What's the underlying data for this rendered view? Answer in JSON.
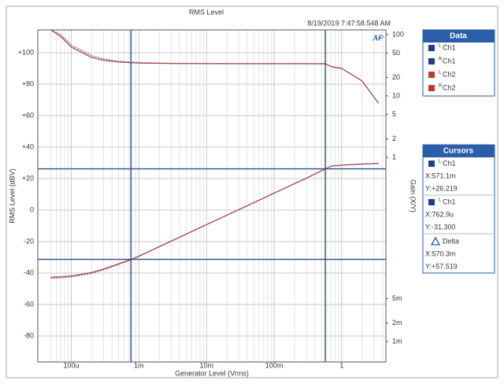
{
  "chart_data": {
    "type": "line",
    "title": "RMS Level",
    "timestamp": "8/19/2019 7:47:58.548 AM",
    "logo": "AP",
    "xlabel": "Generator Level (Vrms)",
    "ylabel": "RMS Level (dBV)",
    "y2label": "Gain (X/Y)",
    "xscale": "log",
    "y2scale": "log",
    "grid": true,
    "xlim": [
      3.2e-05,
      4.5
    ],
    "ylim": [
      -96.5,
      114.5
    ],
    "y2lim": [
      0.000464,
      119
    ],
    "xticks": [
      {
        "value": 0.0001,
        "label": "100u"
      },
      {
        "value": 0.001,
        "label": "1m"
      },
      {
        "value": 0.01,
        "label": "10m"
      },
      {
        "value": 0.1,
        "label": "100m"
      },
      1
    ],
    "xminorticks": [
      5e-05,
      6e-05,
      7e-05,
      8e-05,
      9e-05,
      0.0002,
      0.0003,
      0.0004,
      0.0005,
      0.0006,
      0.0007,
      0.0008,
      0.0009,
      0.002,
      0.003,
      0.004,
      0.005,
      0.006,
      0.007,
      0.008,
      0.009,
      0.02,
      0.03,
      0.04,
      0.05,
      0.06,
      0.07,
      0.08,
      0.09,
      0.2,
      0.3,
      0.4,
      0.5,
      0.6,
      0.7,
      0.8,
      0.9,
      2,
      3,
      4
    ],
    "yticks": [
      {
        "value": 100,
        "label": "+100"
      },
      {
        "value": 80,
        "label": "+80"
      },
      {
        "value": 60,
        "label": "+60"
      },
      {
        "value": 40,
        "label": "+40"
      },
      {
        "value": 20,
        "label": "+20"
      },
      0,
      -20,
      -40,
      -60,
      -80
    ],
    "y2ticks": [
      100,
      50,
      20,
      10,
      5,
      2,
      1,
      {
        "value": 0.005,
        "label": "5m"
      },
      {
        "value": 0.002,
        "label": "2m"
      },
      {
        "value": 0.001,
        "label": "1m"
      }
    ],
    "x": [
      5e-05,
      7e-05,
      0.0001,
      0.0002,
      0.0003,
      0.0005,
      0.0007629,
      0.001,
      0.003,
      0.01,
      0.03,
      0.1,
      0.3,
      0.5711,
      0.7,
      1,
      2,
      3.5
    ],
    "legend_title": "Data",
    "series": [
      {
        "name": "Ch1",
        "channel": "L",
        "color": "#1f3d8c",
        "dashed": false,
        "values": [
          -42.5,
          -42.3,
          -41.8,
          -39.6,
          -37.4,
          -34.1,
          -31.3,
          -29.2,
          -19.7,
          -9.2,
          0.3,
          10.8,
          20.3,
          26.2,
          28.0,
          28.6,
          29.3,
          29.7
        ],
        "gain": [
          119,
          92,
          62,
          42,
          38,
          35.5,
          34.8,
          34.3,
          33.7,
          33.5,
          33.4,
          33.4,
          33.4,
          33.4,
          30,
          28,
          17.5,
          7.6
        ]
      },
      {
        "name": "Ch1",
        "channel": "R",
        "color": "#1f3d8c",
        "dashed": true,
        "values": [
          -43.2,
          -43.0,
          -42.5,
          -40.2,
          -37.9,
          -34.5,
          -31.6,
          -29.4,
          -19.8,
          -9.3,
          0.2,
          10.7,
          20.2,
          26.1,
          27.9,
          28.5,
          29.2,
          29.6
        ],
        "gain": [
          119,
          99,
          67,
          45,
          40,
          36.5,
          35.5,
          34.8,
          34.0,
          33.8,
          33.7,
          33.7,
          33.7,
          33.6,
          30.2,
          28.2,
          17.6,
          7.6
        ]
      },
      {
        "name": "Ch2",
        "channel": "L",
        "color": "#c0392b",
        "dashed": false,
        "values": [
          -42.6,
          -42.4,
          -41.9,
          -39.7,
          -37.5,
          -34.2,
          -31.4,
          -29.3,
          -19.7,
          -9.2,
          0.3,
          10.8,
          20.3,
          26.2,
          28.0,
          28.6,
          29.3,
          29.7
        ],
        "gain": [
          119,
          93,
          63,
          42.5,
          38.3,
          35.7,
          34.9,
          34.4,
          33.8,
          33.6,
          33.5,
          33.5,
          33.5,
          33.4,
          30,
          28,
          17.5,
          7.6
        ]
      },
      {
        "name": "Ch2",
        "channel": "R",
        "color": "#c0392b",
        "dashed": true,
        "values": [
          -43.3,
          -43.1,
          -42.6,
          -40.3,
          -38.0,
          -34.6,
          -31.7,
          -29.5,
          -19.9,
          -9.3,
          0.2,
          10.7,
          20.2,
          26.1,
          27.9,
          28.5,
          29.2,
          29.6
        ],
        "gain": [
          119,
          100,
          68,
          45.5,
          40.3,
          36.7,
          35.6,
          34.9,
          34.1,
          33.9,
          33.8,
          33.8,
          33.8,
          33.6,
          30.2,
          28.2,
          17.6,
          7.6
        ]
      }
    ],
    "cursors_title": "Cursors",
    "cursors": [
      {
        "channel": "L",
        "name": "Ch1",
        "x": {
          "value": 0.5711,
          "label": "X:571.1m"
        },
        "y": {
          "value": 26.219,
          "label": "Y:+26.219"
        }
      },
      {
        "channel": "L",
        "name": "Ch1",
        "x": {
          "value": 0.0007629,
          "label": "X:762.9u"
        },
        "y": {
          "value": -31.3,
          "label": "Y:-31.300"
        }
      }
    ],
    "delta": {
      "name": "Delta",
      "x": {
        "value": 0.5703,
        "label": "X:570.3m"
      },
      "y": {
        "value": 57.519,
        "label": "Y:+57.519"
      }
    }
  }
}
